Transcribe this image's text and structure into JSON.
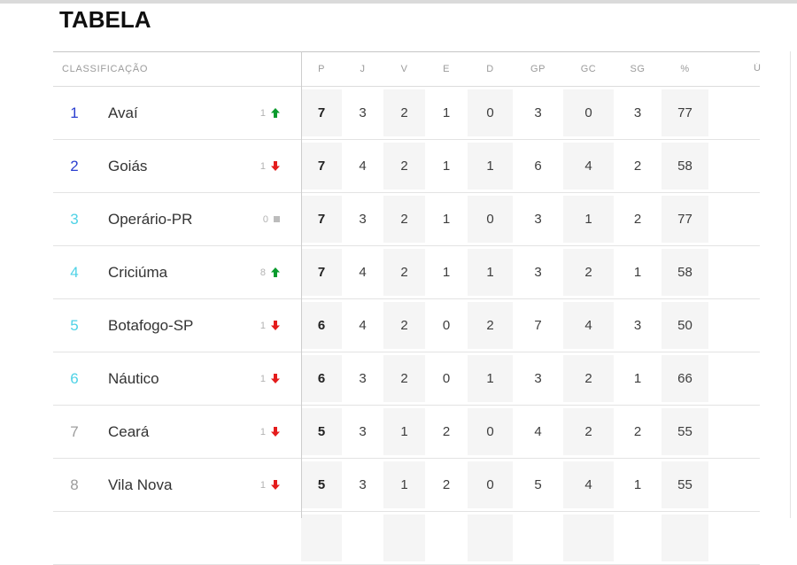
{
  "page": {
    "title": "TABELA"
  },
  "table": {
    "classification_header": "CLASSIFICAÇÃO",
    "stat_headers": [
      "P",
      "J",
      "V",
      "E",
      "D",
      "GP",
      "GC",
      "SG",
      "%"
    ],
    "partial_next_header": "Ú",
    "rows": [
      {
        "pos": "1",
        "pos_color": "blue",
        "team": "Avaí",
        "delta": "1",
        "trend": "up",
        "stats": [
          "7",
          "3",
          "2",
          "1",
          "0",
          "3",
          "0",
          "3",
          "77"
        ]
      },
      {
        "pos": "2",
        "pos_color": "blue",
        "team": "Goiás",
        "delta": "1",
        "trend": "down",
        "stats": [
          "7",
          "4",
          "2",
          "1",
          "1",
          "6",
          "4",
          "2",
          "58"
        ]
      },
      {
        "pos": "3",
        "pos_color": "cyan",
        "team": "Operário-PR",
        "delta": "0",
        "trend": "same",
        "stats": [
          "7",
          "3",
          "2",
          "1",
          "0",
          "3",
          "1",
          "2",
          "77"
        ]
      },
      {
        "pos": "4",
        "pos_color": "cyan",
        "team": "Criciúma",
        "delta": "8",
        "trend": "up",
        "stats": [
          "7",
          "4",
          "2",
          "1",
          "1",
          "3",
          "2",
          "1",
          "58"
        ]
      },
      {
        "pos": "5",
        "pos_color": "cyan",
        "team": "Botafogo-SP",
        "delta": "1",
        "trend": "down",
        "stats": [
          "6",
          "4",
          "2",
          "0",
          "2",
          "7",
          "4",
          "3",
          "50"
        ]
      },
      {
        "pos": "6",
        "pos_color": "cyan",
        "team": "Náutico",
        "delta": "1",
        "trend": "down",
        "stats": [
          "6",
          "3",
          "2",
          "0",
          "1",
          "3",
          "2",
          "1",
          "66"
        ]
      },
      {
        "pos": "7",
        "pos_color": "gray",
        "team": "Ceará",
        "delta": "1",
        "trend": "down",
        "stats": [
          "5",
          "3",
          "1",
          "2",
          "0",
          "4",
          "2",
          "2",
          "55"
        ]
      },
      {
        "pos": "8",
        "pos_color": "gray",
        "team": "Vila Nova",
        "delta": "1",
        "trend": "down",
        "stats": [
          "5",
          "3",
          "1",
          "2",
          "0",
          "5",
          "4",
          "1",
          "55"
        ]
      }
    ],
    "colors": {
      "pos_blue": "#2b3fd0",
      "pos_cyan": "#4ed2e6",
      "pos_gray": "#9c9c9c",
      "trend_up": "#0a9b2d",
      "trend_down": "#e41c1c",
      "trend_same": "#bcbcbc",
      "shaded_column_bg": "#f5f5f5"
    }
  }
}
